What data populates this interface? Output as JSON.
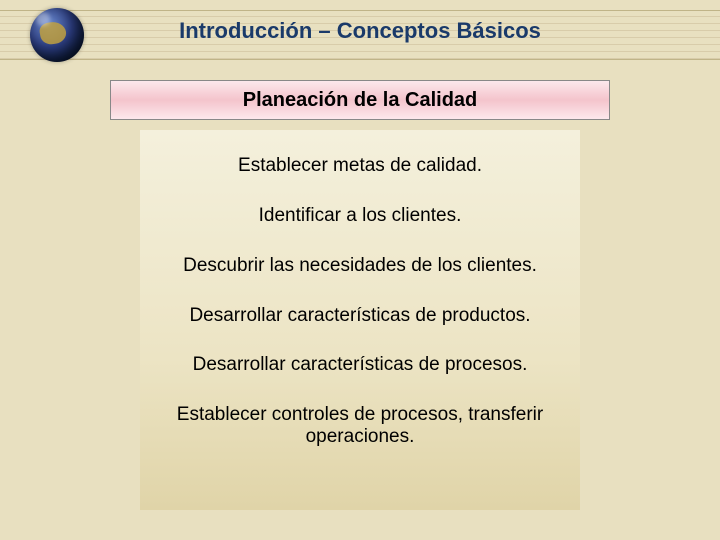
{
  "colors": {
    "page_background": "#e8e0c0",
    "header_title_color": "#1a3a6a",
    "subtitle_bg_top": "#fce8ec",
    "subtitle_bg_mid": "#f4c4cc",
    "subtitle_border": "#888888",
    "content_bg_top": "#f4f0dc",
    "content_bg_bottom": "#e0d4a8",
    "text_color": "#000000"
  },
  "typography": {
    "header_fontsize": 22,
    "header_weight": "bold",
    "subtitle_fontsize": 20,
    "subtitle_weight": "bold",
    "step_fontsize": 19,
    "font_family": "Verdana"
  },
  "header": {
    "title": "Introducción – Conceptos Básicos"
  },
  "subtitle": "Planeación de la Calidad",
  "steps": [
    "Establecer metas de calidad.",
    "Identificar a los clientes.",
    "Descubrir las necesidades de los clientes.",
    "Desarrollar características de productos.",
    "Desarrollar características de procesos.",
    "Establecer controles de procesos, transferir operaciones."
  ]
}
